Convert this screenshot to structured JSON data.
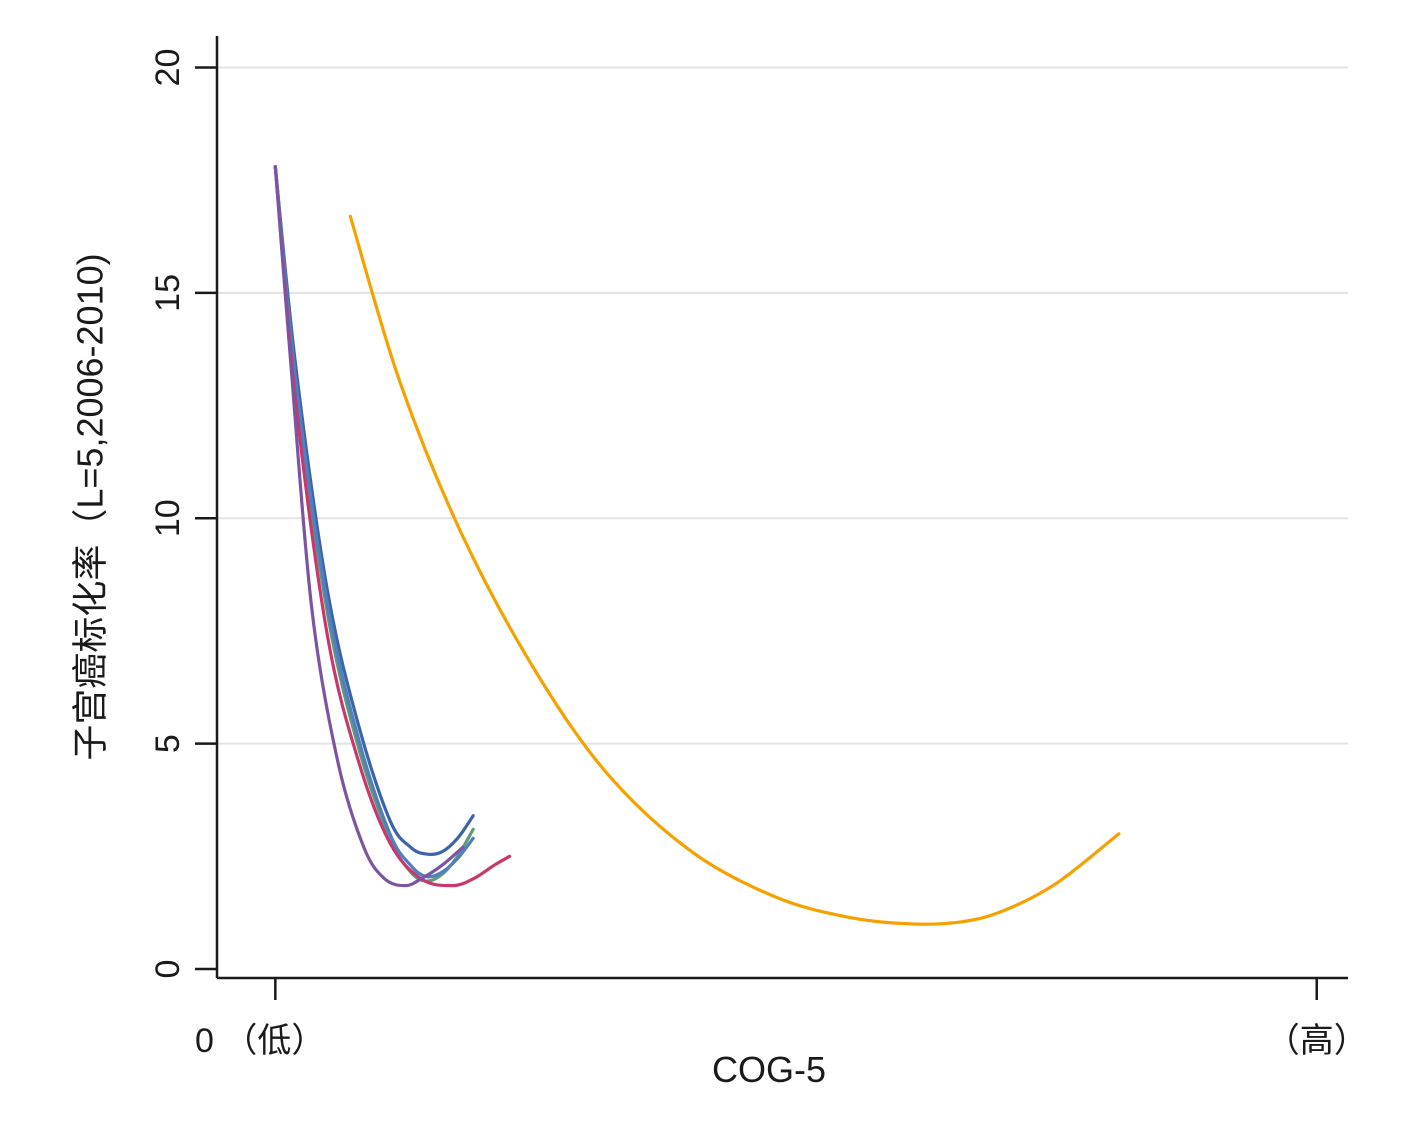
{
  "chart_data": {
    "type": "line",
    "title": "",
    "xlabel": "COG-5",
    "ylabel": "子宫癌标化率（L=5,2006-2010)",
    "x_tick_labels": {
      "left": "0 （低）",
      "right": "（高）"
    },
    "y_ticks": [
      0,
      5,
      10,
      15,
      20
    ],
    "y_tick_labels": [
      "0",
      "5",
      "10",
      "15",
      "20"
    ],
    "ylim": [
      -0.2,
      20.7
    ],
    "xlim": [
      -0.056,
      1.03
    ],
    "grid": "horizontal",
    "series": [
      {
        "color": "#3c64a8",
        "x": [
          0.0,
          0.02,
          0.05,
          0.08,
          0.11,
          0.13,
          0.145,
          0.16,
          0.175,
          0.19
        ],
        "y": [
          17.8,
          13.3,
          8.4,
          5.4,
          3.3,
          2.7,
          2.55,
          2.6,
          2.9,
          3.4
        ]
      },
      {
        "color": "#5f9a78",
        "x": [
          0.0,
          0.02,
          0.05,
          0.08,
          0.11,
          0.13,
          0.145,
          0.16,
          0.175,
          0.19
        ],
        "y": [
          17.8,
          12.9,
          7.9,
          4.9,
          2.9,
          2.15,
          1.95,
          2.1,
          2.5,
          3.1
        ]
      },
      {
        "color": "#4f7fbf",
        "x": [
          0.0,
          0.02,
          0.05,
          0.08,
          0.11,
          0.13,
          0.145,
          0.16,
          0.175,
          0.19
        ],
        "y": [
          17.8,
          13.0,
          8.1,
          5.1,
          3.0,
          2.3,
          2.05,
          2.15,
          2.45,
          2.9
        ]
      },
      {
        "color": "#c8386e",
        "x": [
          0.0,
          0.02,
          0.05,
          0.08,
          0.11,
          0.14,
          0.17,
          0.19,
          0.21,
          0.225
        ],
        "y": [
          17.8,
          12.5,
          7.4,
          4.6,
          2.8,
          2.0,
          1.85,
          2.0,
          2.3,
          2.5
        ]
      },
      {
        "color": "#7b55a3",
        "x": [
          0.0,
          0.015,
          0.035,
          0.06,
          0.085,
          0.105,
          0.125,
          0.14,
          0.16,
          0.18
        ],
        "y": [
          17.8,
          13.4,
          8.0,
          4.6,
          2.7,
          2.0,
          1.85,
          2.0,
          2.3,
          2.7
        ]
      },
      {
        "color": "#f5a100",
        "x": [
          0.072,
          0.12,
          0.18,
          0.25,
          0.32,
          0.4,
          0.48,
          0.55,
          0.61,
          0.66,
          0.7,
          0.75,
          0.81
        ],
        "y": [
          16.7,
          13.0,
          9.6,
          6.6,
          4.3,
          2.6,
          1.6,
          1.15,
          1.0,
          1.05,
          1.3,
          1.9,
          3.0
        ]
      }
    ]
  }
}
